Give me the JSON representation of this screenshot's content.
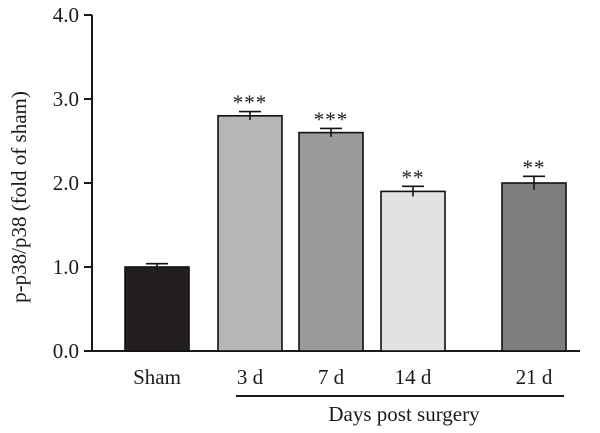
{
  "chart_data": {
    "type": "bar",
    "categories": [
      "Sham",
      "3 d",
      "7 d",
      "14 d",
      "21 d"
    ],
    "values": [
      1.0,
      2.8,
      2.6,
      1.9,
      2.0
    ],
    "errors": [
      0.04,
      0.05,
      0.05,
      0.06,
      0.08
    ],
    "significance": [
      "",
      "***",
      "***",
      "**",
      "**"
    ],
    "colors": [
      "#231f20",
      "#b6b6b6",
      "#9a9a9a",
      "#e2e2e2",
      "#7e7e7e"
    ],
    "title": "",
    "ylabel": "p-p38/p38 (fold of sham)",
    "xlabel": "Days post surgery",
    "group_label_spans": [
      "3 d",
      "21 d"
    ],
    "ylim": [
      0,
      4.0
    ],
    "yticks": [
      0.0,
      1.0,
      2.0,
      3.0,
      4.0
    ],
    "ytick_labels": [
      "0.0",
      "1.0",
      "2.0",
      "3.0",
      "4.0"
    ],
    "grid": false,
    "legend": "none"
  }
}
